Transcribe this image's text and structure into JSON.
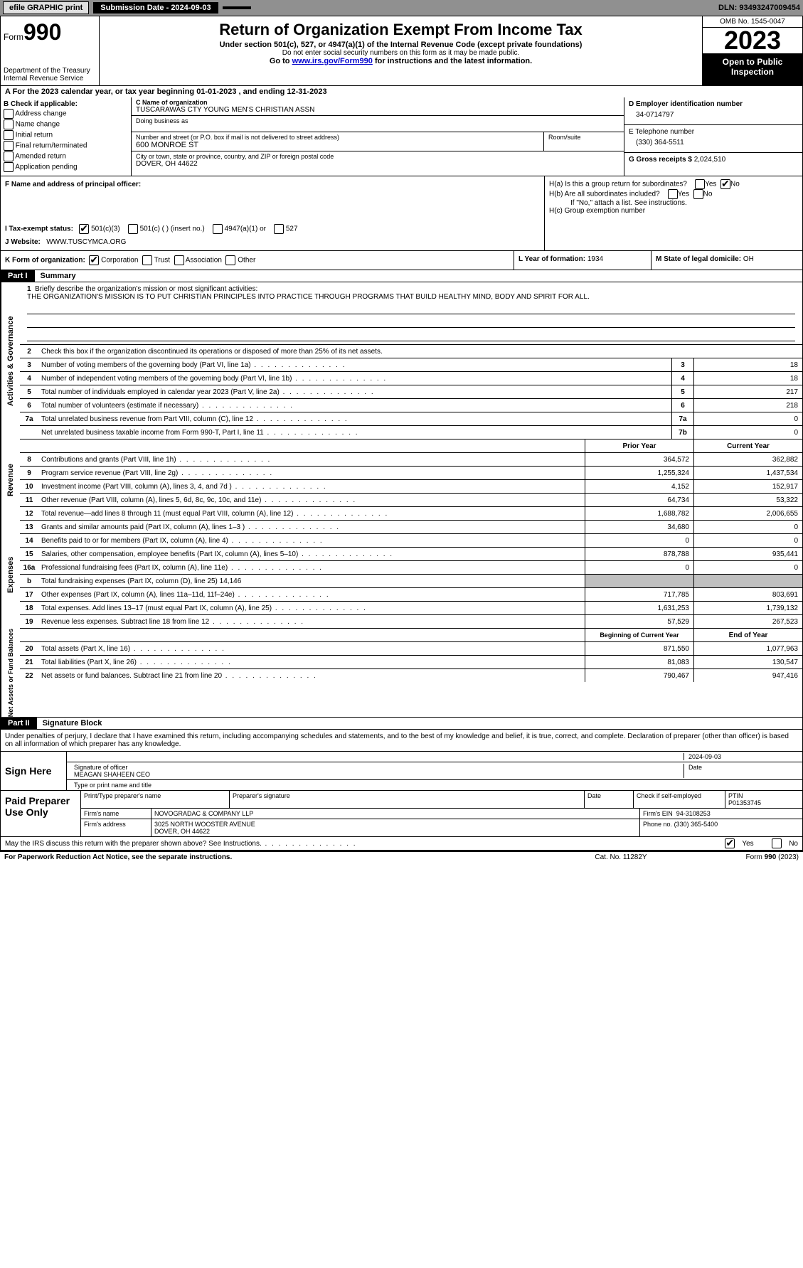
{
  "topbar": {
    "efile": "efile GRAPHIC print",
    "submission": "Submission Date - 2024-09-03",
    "dln": "DLN: 93493247009454"
  },
  "header": {
    "form_prefix": "Form",
    "form_number": "990",
    "dept": "Department of the Treasury\nInternal Revenue Service",
    "title": "Return of Organization Exempt From Income Tax",
    "subtitle": "Under section 501(c), 527, or 4947(a)(1) of the Internal Revenue Code (except private foundations)",
    "note1": "Do not enter social security numbers on this form as it may be made public.",
    "note2_pre": "Go to ",
    "note2_link": "www.irs.gov/Form990",
    "note2_post": " for instructions and the latest information.",
    "omb": "OMB No. 1545-0047",
    "year": "2023",
    "public": "Open to Public Inspection"
  },
  "lineA": "A   For the 2023 calendar year, or tax year beginning 01-01-2023    , and ending 12-31-2023",
  "sectionB": {
    "title": "B Check if applicable:",
    "items": [
      "Address change",
      "Name change",
      "Initial return",
      "Final return/terminated",
      "Amended return",
      "Application pending"
    ]
  },
  "sectionC": {
    "name_label": "C Name of organization",
    "name": "TUSCARAWAS CTY YOUNG MEN'S CHRISTIAN ASSN",
    "dba_label": "Doing business as",
    "street_label": "Number and street (or P.O. box if mail is not delivered to street address)",
    "street": "600 MONROE ST",
    "suite_label": "Room/suite",
    "city_label": "City or town, state or province, country, and ZIP or foreign postal code",
    "city": "DOVER, OH  44622"
  },
  "sectionD": {
    "label": "D Employer identification number",
    "value": "34-0714797"
  },
  "sectionE": {
    "label": "E Telephone number",
    "value": "(330) 364-5511"
  },
  "sectionG": {
    "label": "G Gross receipts $",
    "value": "2,024,510"
  },
  "sectionF": {
    "label": "F  Name and address of principal officer:"
  },
  "sectionH": {
    "ha": "H(a)  Is this a group return for subordinates?",
    "ha_yes": "Yes",
    "ha_no": "No",
    "hb": "H(b)  Are all subordinates included?",
    "hb_note": "If \"No,\" attach a list. See instructions.",
    "hc": "H(c)  Group exemption number"
  },
  "sectionI": {
    "label": "I    Tax-exempt status:",
    "opts": [
      "501(c)(3)",
      "501(c) (  ) (insert no.)",
      "4947(a)(1) or",
      "527"
    ]
  },
  "sectionJ": {
    "label": "J   Website:",
    "value": "WWW.TUSCYMCA.ORG"
  },
  "sectionK": {
    "label": "K Form of organization:",
    "opts": [
      "Corporation",
      "Trust",
      "Association",
      "Other"
    ]
  },
  "sectionL": {
    "label": "L Year of formation:",
    "value": "1934"
  },
  "sectionM": {
    "label": "M State of legal domicile:",
    "value": "OH"
  },
  "part1": {
    "label": "Part I",
    "title": "Summary",
    "q1_label": "1",
    "q1_text": "Briefly describe the organization's mission or most significant activities:",
    "q1_value": "THE ORGANIZATION'S MISSION IS TO PUT CHRISTIAN PRINCIPLES INTO PRACTICE THROUGH PROGRAMS THAT BUILD HEALTHY MIND, BODY AND SPIRIT FOR ALL.",
    "q2_text": "Check this box     if the organization discontinued its operations or disposed of more than 25% of its net assets.",
    "gov_rows": [
      {
        "n": "3",
        "d": "Number of voting members of the governing body (Part VI, line 1a)",
        "box": "3",
        "v": "18"
      },
      {
        "n": "4",
        "d": "Number of independent voting members of the governing body (Part VI, line 1b)",
        "box": "4",
        "v": "18"
      },
      {
        "n": "5",
        "d": "Total number of individuals employed in calendar year 2023 (Part V, line 2a)",
        "box": "5",
        "v": "217"
      },
      {
        "n": "6",
        "d": "Total number of volunteers (estimate if necessary)",
        "box": "6",
        "v": "218"
      },
      {
        "n": "7a",
        "d": "Total unrelated business revenue from Part VIII, column (C), line 12",
        "box": "7a",
        "v": "0"
      },
      {
        "n": "",
        "d": "Net unrelated business taxable income from Form 990-T, Part I, line 11",
        "box": "7b",
        "v": "0"
      }
    ],
    "prior_hdr": "Prior Year",
    "current_hdr": "Current Year",
    "rev_rows": [
      {
        "n": "8",
        "d": "Contributions and grants (Part VIII, line 1h)",
        "p": "364,572",
        "c": "362,882"
      },
      {
        "n": "9",
        "d": "Program service revenue (Part VIII, line 2g)",
        "p": "1,255,324",
        "c": "1,437,534"
      },
      {
        "n": "10",
        "d": "Investment income (Part VIII, column (A), lines 3, 4, and 7d )",
        "p": "4,152",
        "c": "152,917"
      },
      {
        "n": "11",
        "d": "Other revenue (Part VIII, column (A), lines 5, 6d, 8c, 9c, 10c, and 11e)",
        "p": "64,734",
        "c": "53,322"
      },
      {
        "n": "12",
        "d": "Total revenue—add lines 8 through 11 (must equal Part VIII, column (A), line 12)",
        "p": "1,688,782",
        "c": "2,006,655"
      }
    ],
    "exp_rows": [
      {
        "n": "13",
        "d": "Grants and similar amounts paid (Part IX, column (A), lines 1–3 )",
        "p": "34,680",
        "c": "0"
      },
      {
        "n": "14",
        "d": "Benefits paid to or for members (Part IX, column (A), line 4)",
        "p": "0",
        "c": "0"
      },
      {
        "n": "15",
        "d": "Salaries, other compensation, employee benefits (Part IX, column (A), lines 5–10)",
        "p": "878,788",
        "c": "935,441"
      },
      {
        "n": "16a",
        "d": "Professional fundraising fees (Part IX, column (A), line 11e)",
        "p": "0",
        "c": "0"
      },
      {
        "n": "b",
        "d": "Total fundraising expenses (Part IX, column (D), line 25) 14,146",
        "p": "grey",
        "c": "grey"
      },
      {
        "n": "17",
        "d": "Other expenses (Part IX, column (A), lines 11a–11d, 11f–24e)",
        "p": "717,785",
        "c": "803,691"
      },
      {
        "n": "18",
        "d": "Total expenses. Add lines 13–17 (must equal Part IX, column (A), line 25)",
        "p": "1,631,253",
        "c": "1,739,132"
      },
      {
        "n": "19",
        "d": "Revenue less expenses. Subtract line 18 from line 12",
        "p": "57,529",
        "c": "267,523"
      }
    ],
    "beg_hdr": "Beginning of Current Year",
    "end_hdr": "End of Year",
    "net_rows": [
      {
        "n": "20",
        "d": "Total assets (Part X, line 16)",
        "p": "871,550",
        "c": "1,077,963"
      },
      {
        "n": "21",
        "d": "Total liabilities (Part X, line 26)",
        "p": "81,083",
        "c": "130,547"
      },
      {
        "n": "22",
        "d": "Net assets or fund balances. Subtract line 21 from line 20",
        "p": "790,467",
        "c": "947,416"
      }
    ],
    "side_gov": "Activities & Governance",
    "side_rev": "Revenue",
    "side_exp": "Expenses",
    "side_net": "Net Assets or Fund Balances"
  },
  "part2": {
    "label": "Part II",
    "title": "Signature Block",
    "declaration": "Under penalties of perjury, I declare that I have examined this return, including accompanying schedules and statements, and to the best of my knowledge and belief, it is true, correct, and complete. Declaration of preparer (other than officer) is based on all information of which preparer has any knowledge.",
    "sign_here": "Sign Here",
    "sig_date": "2024-09-03",
    "officer_label": "Signature of officer",
    "officer": "MEAGAN SHAHEEN CEO",
    "type_label": "Type or print name and title",
    "date_label": "Date",
    "paid": "Paid Preparer Use Only",
    "prep_name_label": "Print/Type preparer's name",
    "prep_sig_label": "Preparer's signature",
    "check_label": "Check      if self-employed",
    "ptin_label": "PTIN",
    "ptin": "P01353745",
    "firm_name_label": "Firm's name",
    "firm_name": "NOVOGRADAC & COMPANY LLP",
    "firm_ein_label": "Firm's EIN",
    "firm_ein": "94-3108253",
    "firm_addr_label": "Firm's address",
    "firm_addr": "3025 NORTH WOOSTER AVENUE",
    "firm_city": "DOVER, OH  44622",
    "phone_label": "Phone no.",
    "phone": "(330) 365-5400",
    "discuss": "May the IRS discuss this return with the preparer shown above? See Instructions.",
    "yes": "Yes",
    "no": "No"
  },
  "bottom": {
    "pra": "For Paperwork Reduction Act Notice, see the separate instructions.",
    "cat": "Cat. No. 11282Y",
    "form": "Form 990 (2023)"
  }
}
